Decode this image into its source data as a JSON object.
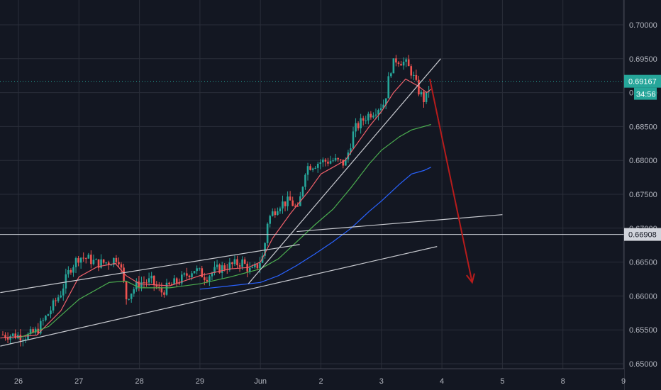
{
  "chart_data": {
    "type": "candlestick",
    "colors": {
      "background": "#131722",
      "grid": "#2a2e39",
      "up": "#26a69a",
      "down": "#ef5350",
      "ma_fast": "#f0606a",
      "ma_mid": "#4caf50",
      "ma_slow": "#2962ff",
      "trendline": "#c8cad0",
      "projection_arrow": "#b71c1c",
      "current_price_bg": "#26a69a",
      "level_price_bg": "#d1d4dc"
    },
    "y_ticks": [
      "0.70000",
      "0.69500",
      "0.69000",
      "0.68500",
      "0.68000",
      "0.67500",
      "0.67000",
      "0.66500",
      "0.66000",
      "0.65500",
      "0.65000"
    ],
    "y_tick_values": [
      0.7,
      0.695,
      0.69,
      0.685,
      0.68,
      0.675,
      0.67,
      0.665,
      0.66,
      0.655,
      0.65
    ],
    "ylim": [
      0.6494,
      0.7028
    ],
    "x_ticks": [
      "26",
      "27",
      "28",
      "29",
      "Jun",
      "2",
      "3",
      "4",
      "5",
      "8",
      "9"
    ],
    "x_tick_days": [
      0,
      1,
      2,
      3,
      4,
      5,
      6,
      7,
      8,
      9,
      10
    ],
    "xlim": [
      -0.3,
      10.0
    ],
    "current_price": {
      "label": "0.69167",
      "value": 0.69167,
      "countdown": "34:56"
    },
    "level_line": {
      "label": "0.66908",
      "value": 0.66908
    },
    "close_path": [
      [
        -0.3,
        0.6543
      ],
      [
        0.15,
        0.6541
      ],
      [
        0.3,
        0.6548
      ],
      [
        0.5,
        0.6575
      ],
      [
        0.7,
        0.6605
      ],
      [
        0.85,
        0.664
      ],
      [
        1.0,
        0.6658
      ],
      [
        1.15,
        0.6655
      ],
      [
        1.3,
        0.6648
      ],
      [
        1.5,
        0.665
      ],
      [
        1.65,
        0.6658
      ],
      [
        1.72,
        0.663
      ],
      [
        1.78,
        0.6597
      ],
      [
        1.85,
        0.6605
      ],
      [
        2.0,
        0.662
      ],
      [
        2.2,
        0.6622
      ],
      [
        2.35,
        0.6605
      ],
      [
        2.5,
        0.6615
      ],
      [
        2.7,
        0.6625
      ],
      [
        2.9,
        0.664
      ],
      [
        3.1,
        0.6628
      ],
      [
        3.3,
        0.664
      ],
      [
        3.5,
        0.6645
      ],
      [
        3.7,
        0.665
      ],
      [
        3.85,
        0.6635
      ],
      [
        3.95,
        0.6645
      ],
      [
        4.05,
        0.666
      ],
      [
        4.12,
        0.6712
      ],
      [
        4.3,
        0.6735
      ],
      [
        4.5,
        0.674
      ],
      [
        4.62,
        0.6725
      ],
      [
        4.75,
        0.679
      ],
      [
        5.0,
        0.6798
      ],
      [
        5.2,
        0.68
      ],
      [
        5.4,
        0.6795
      ],
      [
        5.55,
        0.6845
      ],
      [
        5.75,
        0.6865
      ],
      [
        5.9,
        0.6875
      ],
      [
        6.05,
        0.6885
      ],
      [
        6.15,
        0.6935
      ],
      [
        6.25,
        0.695
      ],
      [
        6.4,
        0.6943
      ],
      [
        6.5,
        0.693
      ],
      [
        6.6,
        0.6905
      ],
      [
        6.7,
        0.689
      ],
      [
        6.75,
        0.6895
      ],
      [
        6.82,
        0.6917
      ]
    ],
    "series": [
      {
        "key": "ma_fast",
        "points": [
          [
            -0.3,
            0.6538
          ],
          [
            0.3,
            0.6542
          ],
          [
            0.7,
            0.6578
          ],
          [
            1.0,
            0.6628
          ],
          [
            1.3,
            0.6643
          ],
          [
            1.6,
            0.6648
          ],
          [
            1.78,
            0.663
          ],
          [
            2.0,
            0.6618
          ],
          [
            2.5,
            0.6615
          ],
          [
            3.0,
            0.663
          ],
          [
            3.5,
            0.664
          ],
          [
            3.8,
            0.6642
          ],
          [
            4.0,
            0.665
          ],
          [
            4.2,
            0.6685
          ],
          [
            4.5,
            0.6722
          ],
          [
            4.8,
            0.6755
          ],
          [
            5.0,
            0.678
          ],
          [
            5.2,
            0.679
          ],
          [
            5.4,
            0.68
          ],
          [
            5.6,
            0.6825
          ],
          [
            5.8,
            0.685
          ],
          [
            6.0,
            0.6872
          ],
          [
            6.2,
            0.69
          ],
          [
            6.4,
            0.692
          ],
          [
            6.6,
            0.691
          ],
          [
            6.75,
            0.69
          ],
          [
            6.82,
            0.6905
          ]
        ]
      },
      {
        "key": "ma_mid",
        "points": [
          [
            0.0,
            0.6538
          ],
          [
            0.5,
            0.6555
          ],
          [
            1.0,
            0.6595
          ],
          [
            1.5,
            0.662
          ],
          [
            1.78,
            0.6622
          ],
          [
            2.0,
            0.6612
          ],
          [
            2.5,
            0.6612
          ],
          [
            3.0,
            0.6618
          ],
          [
            3.5,
            0.6628
          ],
          [
            4.0,
            0.664
          ],
          [
            4.3,
            0.6655
          ],
          [
            4.6,
            0.668
          ],
          [
            4.9,
            0.6705
          ],
          [
            5.2,
            0.6728
          ],
          [
            5.5,
            0.676
          ],
          [
            5.8,
            0.6795
          ],
          [
            6.0,
            0.6815
          ],
          [
            6.3,
            0.6835
          ],
          [
            6.5,
            0.6845
          ],
          [
            6.7,
            0.685
          ],
          [
            6.82,
            0.6853
          ]
        ]
      },
      {
        "key": "ma_slow",
        "points": [
          [
            3.0,
            0.661
          ],
          [
            3.5,
            0.6615
          ],
          [
            4.0,
            0.662
          ],
          [
            4.3,
            0.663
          ],
          [
            4.6,
            0.6645
          ],
          [
            4.9,
            0.6662
          ],
          [
            5.2,
            0.668
          ],
          [
            5.5,
            0.67
          ],
          [
            5.8,
            0.6725
          ],
          [
            6.0,
            0.674
          ],
          [
            6.3,
            0.6765
          ],
          [
            6.5,
            0.678
          ],
          [
            6.7,
            0.6785
          ],
          [
            6.82,
            0.679
          ]
        ]
      }
    ],
    "trendlines": [
      {
        "from": [
          -0.3,
          0.6605
        ],
        "to": [
          4.65,
          0.6676
        ]
      },
      {
        "from": [
          -0.3,
          0.6526
        ],
        "to": [
          6.92,
          0.6673
        ]
      },
      {
        "from": [
          3.8,
          0.6618
        ],
        "to": [
          6.98,
          0.695
        ]
      },
      {
        "from": [
          4.6,
          0.6695
        ],
        "to": [
          8.0,
          0.672
        ]
      }
    ],
    "projection_arrow": {
      "from": [
        6.8,
        0.692
      ],
      "to": [
        7.5,
        0.662
      ]
    }
  }
}
